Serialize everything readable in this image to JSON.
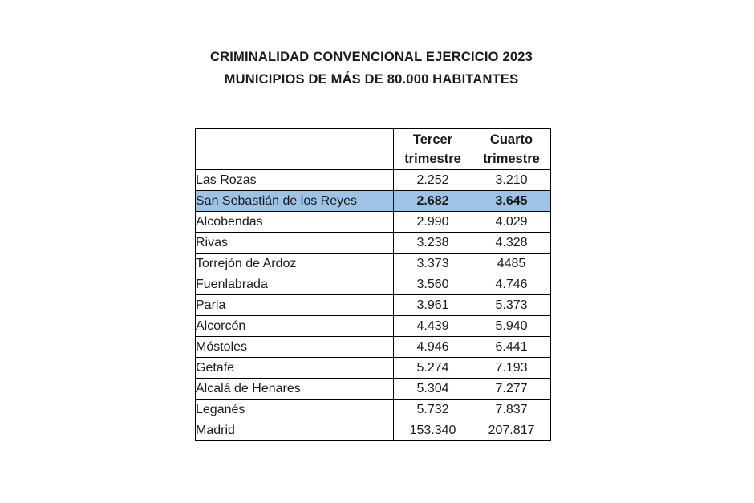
{
  "title": {
    "line1": "CRIMINALIDAD CONVENCIONAL EJERCICIO 2023",
    "line2": "MUNICIPIOS DE MÁS DE 80.000 HABITANTES"
  },
  "table": {
    "columns": {
      "municipality_header": "",
      "q3_header_line1": "Tercer",
      "q3_header_line2": "trimestre",
      "q4_header_line1": "Cuarto",
      "q4_header_line2": "trimestre"
    },
    "rows": [
      {
        "municipality": "Las Rozas",
        "q3": "2.252",
        "q4": "3.210",
        "highlight": false
      },
      {
        "municipality": "San Sebastián de los Reyes",
        "q3": "2.682",
        "q4": "3.645",
        "highlight": true
      },
      {
        "municipality": "Alcobendas",
        "q3": "2.990",
        "q4": "4.029",
        "highlight": false
      },
      {
        "municipality": "Rivas",
        "q3": "3.238",
        "q4": "4.328",
        "highlight": false
      },
      {
        "municipality": "Torrejón de Ardoz",
        "q3": "3.373",
        "q4": "4485",
        "highlight": false
      },
      {
        "municipality": "Fuenlabrada",
        "q3": "3.560",
        "q4": "4.746",
        "highlight": false
      },
      {
        "municipality": "Parla",
        "q3": "3.961",
        "q4": "5.373",
        "highlight": false
      },
      {
        "municipality": "Alcorcón",
        "q3": "4.439",
        "q4": "5.940",
        "highlight": false
      },
      {
        "municipality": "Móstoles",
        "q3": "4.946",
        "q4": "6.441",
        "highlight": false
      },
      {
        "municipality": "Getafe",
        "q3": "5.274",
        "q4": "7.193",
        "highlight": false
      },
      {
        "municipality": "Alcalá de Henares",
        "q3": "5.304",
        "q4": "7.277",
        "highlight": false
      },
      {
        "municipality": "Leganés",
        "q3": "5.732",
        "q4": "7.837",
        "highlight": false
      },
      {
        "municipality": "Madrid",
        "q3": "153.340",
        "q4": "207.817",
        "highlight": false
      }
    ]
  },
  "colors": {
    "highlight_row": "#9DC3E6",
    "border": "#000000",
    "text": "#1A1A1A",
    "background": "#FFFFFF"
  }
}
